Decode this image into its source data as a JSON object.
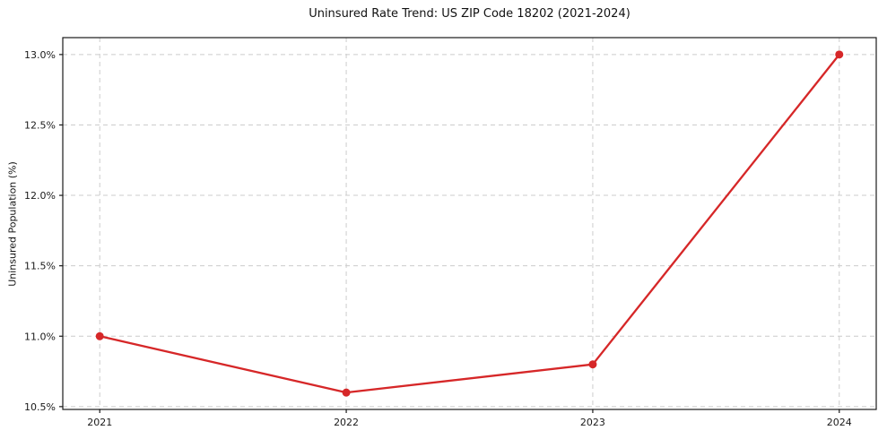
{
  "chart_data": {
    "type": "line",
    "title": "Uninsured Rate Trend: US ZIP Code 18202 (2021-2024)",
    "xlabel": "",
    "ylabel": "Uninsured Population (%)",
    "x": [
      2021,
      2022,
      2023,
      2024
    ],
    "x_tick_labels": [
      "2021",
      "2022",
      "2023",
      "2024"
    ],
    "series": [
      {
        "name": "Uninsured Rate",
        "values": [
          11.0,
          10.6,
          10.8,
          13.0
        ]
      }
    ],
    "y_ticks": [
      10.5,
      11.0,
      11.5,
      12.0,
      12.5,
      13.0
    ],
    "y_tick_labels": [
      "10.5%",
      "11.0%",
      "11.5%",
      "12.0%",
      "12.5%",
      "13.0%"
    ],
    "xlim": [
      2020.85,
      2024.15
    ],
    "ylim": [
      10.48,
      13.12
    ],
    "grid": true,
    "grid_style": "dashed",
    "legend": false,
    "colors": {
      "line": "#d62728",
      "marker": "#d62728",
      "grid": "#cccccc",
      "spine": "#1a1a1a",
      "tick_label": "#1a1a1a",
      "background": "#ffffff"
    }
  }
}
